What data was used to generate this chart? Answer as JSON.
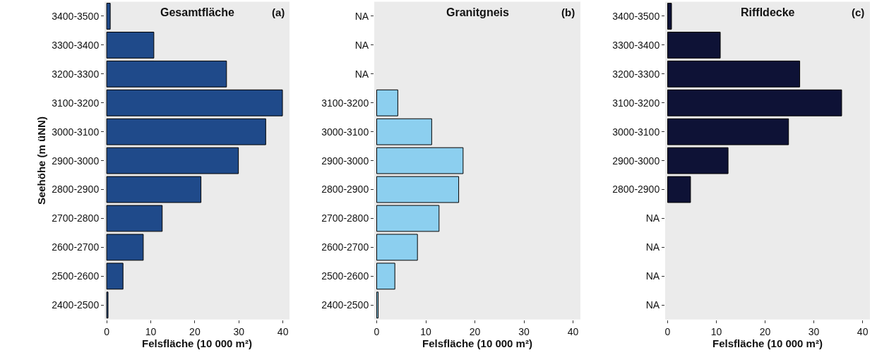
{
  "chart_data": [
    {
      "type": "bar",
      "orientation": "horizontal",
      "title": "Gesamtfläche",
      "annotations": [
        "(a)"
      ],
      "xlabel": "Felsfläche (10 000 m²)",
      "ylabel": "Seehöhe (m üNN)",
      "categories": [
        "3400-3500",
        "3300-3400",
        "3200-3300",
        "3100-3200",
        "3000-3100",
        "2900-3000",
        "2800-2900",
        "2700-2800",
        "2600-2700",
        "2500-2600",
        "2400-2500"
      ],
      "values": [
        0.8,
        10.7,
        27.2,
        39.9,
        36.1,
        29.9,
        21.4,
        12.6,
        8.3,
        3.7,
        0.3
      ],
      "color": "#1f4a8a",
      "xlim": [
        -0.5,
        41.5
      ],
      "xticks": [
        0,
        10,
        20,
        30,
        40
      ],
      "grid": false
    },
    {
      "type": "bar",
      "orientation": "horizontal",
      "title": "Granitgneis",
      "annotations": [
        "(b)"
      ],
      "xlabel": "Felsfläche (10 000 m²)",
      "categories": [
        "NA",
        "NA",
        "NA",
        "3100-3200",
        "3000-3100",
        "2900-3000",
        "2800-2900",
        "2700-2800",
        "2600-2700",
        "2500-2600",
        "2400-2500"
      ],
      "values": [
        null,
        null,
        null,
        4.3,
        11.2,
        17.6,
        16.7,
        12.7,
        8.3,
        3.7,
        0.3
      ],
      "color": "#8ccfef",
      "xlim": [
        -0.5,
        41.5
      ],
      "xticks": [
        0,
        10,
        20,
        30,
        40
      ],
      "grid": false
    },
    {
      "type": "bar",
      "orientation": "horizontal",
      "title": "Riffldecke",
      "annotations": [
        "(c)"
      ],
      "xlabel": "Felsfläche (10 000 m²)",
      "categories": [
        "3400-3500",
        "3300-3400",
        "3200-3300",
        "3100-3200",
        "3000-3100",
        "2900-3000",
        "2800-2900",
        "NA",
        "NA",
        "NA",
        "NA"
      ],
      "values": [
        0.8,
        10.8,
        27.1,
        35.7,
        24.8,
        12.4,
        4.7,
        null,
        null,
        null,
        null
      ],
      "color": "#0e1236",
      "xlim": [
        -0.5,
        41.5
      ],
      "xticks": [
        0,
        10,
        20,
        30,
        40
      ],
      "grid": false
    }
  ]
}
